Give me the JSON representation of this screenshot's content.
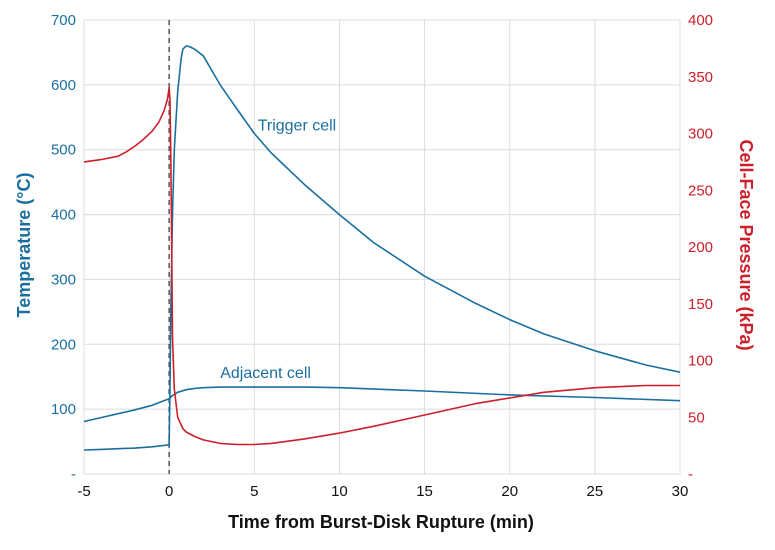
{
  "chart_data": {
    "type": "line",
    "title": "",
    "xlabel": "Time from Burst-Disk Rupture (min)",
    "ylabel_left": "Temperature (°C)",
    "ylabel_right": "Cell-Face Pressure (kPa)",
    "xlim": [
      -5,
      30
    ],
    "ylim_left": [
      0,
      700
    ],
    "ylim_right": [
      0,
      400
    ],
    "x_ticks": [
      "-5",
      "0",
      "5",
      "10",
      "15",
      "20",
      "25",
      "30"
    ],
    "y_ticks_left": [
      "-",
      "100",
      "200",
      "300",
      "400",
      "500",
      "600",
      "700"
    ],
    "y_ticks_right": [
      "-",
      "50",
      "100",
      "150",
      "200",
      "250",
      "300",
      "350",
      "400"
    ],
    "grid": true,
    "event_marker_x": 0,
    "colors": {
      "temperature": "#1a6fa0",
      "pressure": "#cc1f2a",
      "marker": "#555555"
    },
    "annotations": [
      {
        "text": "Trigger cell",
        "x": 5.2,
        "y": 530
      },
      {
        "text": "Adjacent cell",
        "x": 3,
        "y": 148
      }
    ],
    "series": [
      {
        "name": "Trigger cell",
        "axis": "left",
        "x": [
          -5,
          -4,
          -3,
          -2,
          -1,
          0,
          0.05,
          0.1,
          0.2,
          0.3,
          0.5,
          0.7,
          0.8,
          1,
          1.2,
          1.5,
          2,
          3,
          4,
          5,
          6,
          8,
          10,
          12,
          15,
          18,
          20,
          22,
          25,
          28,
          30
        ],
        "values": [
          37,
          38,
          39,
          40,
          42,
          45,
          130,
          250,
          400,
          500,
          590,
          640,
          655,
          660,
          659,
          655,
          645,
          600,
          562,
          525,
          495,
          445,
          400,
          357,
          305,
          263,
          238,
          216,
          190,
          168,
          157
        ]
      },
      {
        "name": "Adjacent cell",
        "axis": "left",
        "x": [
          -5,
          -4,
          -3,
          -2,
          -1,
          -0.5,
          0,
          0.2,
          0.5,
          1,
          1.5,
          2,
          3,
          5,
          8,
          10,
          15,
          20,
          25,
          30
        ],
        "values": [
          81,
          87,
          93,
          99,
          106,
          111,
          116,
          121,
          126,
          130,
          132,
          133,
          134,
          134,
          134,
          133,
          128,
          122,
          118,
          113
        ]
      },
      {
        "name": "Cell-face pressure",
        "axis": "right",
        "x": [
          -5,
          -4,
          -3,
          -2.5,
          -2,
          -1.5,
          -1,
          -0.6,
          -0.3,
          -0.1,
          0,
          0.05,
          0.1,
          0.15,
          0.2,
          0.3,
          0.5,
          0.8,
          1,
          1.5,
          2,
          3,
          4,
          5,
          6,
          8,
          10,
          12,
          15,
          18,
          20,
          22,
          25,
          28,
          30
        ],
        "values": [
          275,
          277,
          280,
          284,
          289,
          295,
          302,
          310,
          320,
          330,
          340,
          330,
          280,
          200,
          120,
          75,
          50,
          40,
          37,
          33,
          30,
          27,
          26,
          26,
          27,
          31,
          36,
          42,
          52,
          62,
          67,
          72,
          76,
          78,
          78
        ]
      }
    ]
  }
}
